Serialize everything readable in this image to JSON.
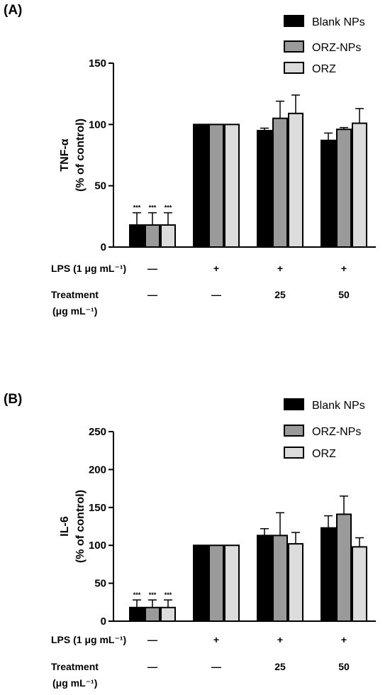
{
  "chart_data": [
    {
      "panel_label": "(A)",
      "type": "bar",
      "ylabel_line1": "TNF-α",
      "ylabel_line2": "(% of control)",
      "ylim": [
        0,
        150
      ],
      "yticks": [
        0,
        50,
        100,
        150
      ],
      "ytick_labels": [
        "0",
        "50",
        "100",
        "150"
      ],
      "groups": [
        {
          "values": [
            18,
            18,
            18
          ],
          "errors": [
            10,
            10,
            10
          ],
          "annotations": [
            "***",
            "***",
            "***"
          ]
        },
        {
          "values": [
            100,
            100,
            100
          ],
          "errors": [
            0,
            0,
            0
          ],
          "annotations": [
            "",
            "",
            ""
          ]
        },
        {
          "values": [
            95,
            105,
            109
          ],
          "errors": [
            2,
            14,
            15
          ],
          "annotations": [
            "",
            "",
            ""
          ]
        },
        {
          "values": [
            87,
            96,
            101
          ],
          "errors": [
            6,
            1.5,
            12
          ],
          "annotations": [
            "",
            "",
            ""
          ]
        }
      ],
      "series": [
        {
          "name": "Blank NPs",
          "color": "#000000"
        },
        {
          "name": "ORZ-NPs",
          "color": "#9a9a9a"
        },
        {
          "name": "ORZ",
          "color": "#dcdcdc"
        }
      ],
      "legend_position": "top-right",
      "rows": {
        "lps_label": "LPS (1 μg mL⁻¹)",
        "lps_values": [
          "—",
          "+",
          "+",
          "+"
        ],
        "treatment_label_line1": "Treatment",
        "treatment_label_line2": "(μg mL⁻¹)",
        "treatment_values": [
          "—",
          "—",
          "25",
          "50"
        ]
      }
    },
    {
      "panel_label": "(B)",
      "type": "bar",
      "ylabel_line1": "IL-6",
      "ylabel_line2": "(% of control)",
      "ylim": [
        0,
        250
      ],
      "yticks": [
        0,
        50,
        100,
        150,
        200,
        250
      ],
      "ytick_labels": [
        "0",
        "50",
        "100",
        "150",
        "200",
        "250"
      ],
      "groups": [
        {
          "values": [
            18,
            18,
            18
          ],
          "errors": [
            10,
            10,
            10
          ],
          "annotations": [
            "***",
            "***",
            "***"
          ]
        },
        {
          "values": [
            100,
            100,
            100
          ],
          "errors": [
            0,
            0,
            0
          ],
          "annotations": [
            "",
            "",
            ""
          ]
        },
        {
          "values": [
            113,
            113,
            102
          ],
          "errors": [
            9,
            30,
            15
          ],
          "annotations": [
            "",
            "",
            ""
          ]
        },
        {
          "values": [
            123,
            141,
            98
          ],
          "errors": [
            16,
            24,
            12
          ],
          "annotations": [
            "",
            "",
            ""
          ]
        }
      ],
      "series": [
        {
          "name": "Blank NPs",
          "color": "#000000"
        },
        {
          "name": "ORZ-NPs",
          "color": "#9a9a9a"
        },
        {
          "name": "ORZ",
          "color": "#dcdcdc"
        }
      ],
      "legend_position": "top-right",
      "rows": {
        "lps_label": "LPS (1 μg mL⁻¹)",
        "lps_values": [
          "—",
          "+",
          "+",
          "+"
        ],
        "treatment_label_line1": "Treatment",
        "treatment_label_line2": "(μg mL⁻¹)",
        "treatment_values": [
          "—",
          "—",
          "25",
          "50"
        ]
      }
    }
  ]
}
